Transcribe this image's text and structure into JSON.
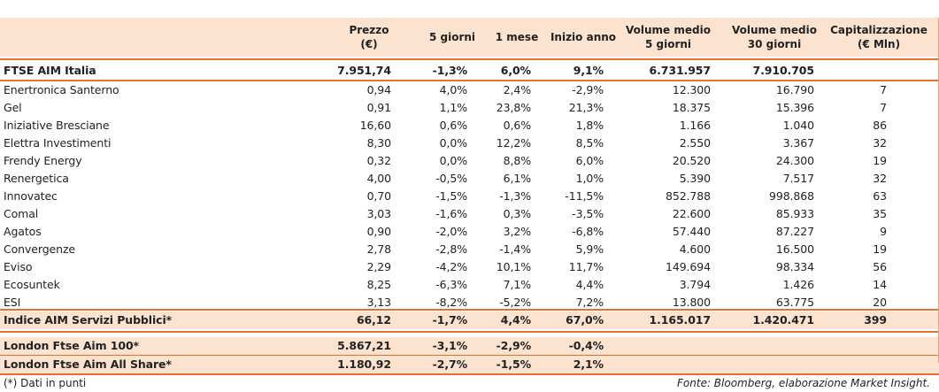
{
  "header": {
    "col1": [
      "Prezzo",
      "(€)"
    ],
    "col2": "5 giorni",
    "col3": "1 mese",
    "col4": "Inizio anno",
    "col5": [
      "Volume medio",
      "5 giorni"
    ],
    "col6": [
      "Volume medio",
      "30 giorni"
    ],
    "col7": [
      "Capitalizzazione",
      "(€ Mln)"
    ]
  },
  "index_row": {
    "name": "FTSE AIM Italia",
    "prezzo": "7.951,74",
    "g5": "-1,3%",
    "m1": "6,0%",
    "ytd": "9,1%",
    "vol5": "6.731.957",
    "vol30": "7.910.705",
    "cap": ""
  },
  "stocks": [
    {
      "name": "Enertronica Santerno",
      "prezzo": "0,94",
      "g5": "4,0%",
      "m1": "2,4%",
      "ytd": "-2,9%",
      "vol5": "12.300",
      "vol30": "16.790",
      "cap": "7"
    },
    {
      "name": "Gel",
      "prezzo": "0,91",
      "g5": "1,1%",
      "m1": "23,8%",
      "ytd": "21,3%",
      "vol5": "18.375",
      "vol30": "15.396",
      "cap": "7"
    },
    {
      "name": "Iniziative Bresciane",
      "prezzo": "16,60",
      "g5": "0,6%",
      "m1": "0,6%",
      "ytd": "1,8%",
      "vol5": "1.166",
      "vol30": "1.040",
      "cap": "86"
    },
    {
      "name": "Elettra Investimenti",
      "prezzo": "8,30",
      "g5": "0,0%",
      "m1": "12,2%",
      "ytd": "8,5%",
      "vol5": "2.550",
      "vol30": "3.367",
      "cap": "32"
    },
    {
      "name": "Frendy Energy",
      "prezzo": "0,32",
      "g5": "0,0%",
      "m1": "8,8%",
      "ytd": "6,0%",
      "vol5": "20.520",
      "vol30": "24.300",
      "cap": "19"
    },
    {
      "name": "Renergetica",
      "prezzo": "4,00",
      "g5": "-0,5%",
      "m1": "6,1%",
      "ytd": "1,0%",
      "vol5": "5.390",
      "vol30": "7.517",
      "cap": "32"
    },
    {
      "name": "Innovatec",
      "prezzo": "0,70",
      "g5": "-1,5%",
      "m1": "-1,3%",
      "ytd": "-11,5%",
      "vol5": "852.788",
      "vol30": "998.868",
      "cap": "63"
    },
    {
      "name": "Comal",
      "prezzo": "3,03",
      "g5": "-1,6%",
      "m1": "0,3%",
      "ytd": "-3,5%",
      "vol5": "22.600",
      "vol30": "85.933",
      "cap": "35"
    },
    {
      "name": "Agatos",
      "prezzo": "0,90",
      "g5": "-2,0%",
      "m1": "3,2%",
      "ytd": "-6,8%",
      "vol5": "57.440",
      "vol30": "87.227",
      "cap": "9"
    },
    {
      "name": "Convergenze",
      "prezzo": "2,78",
      "g5": "-2,8%",
      "m1": "-1,4%",
      "ytd": "5,9%",
      "vol5": "4.600",
      "vol30": "16.500",
      "cap": "19"
    },
    {
      "name": "Eviso",
      "prezzo": "2,29",
      "g5": "-4,2%",
      "m1": "10,1%",
      "ytd": "11,7%",
      "vol5": "149.694",
      "vol30": "98.334",
      "cap": "56"
    },
    {
      "name": "Ecosuntek",
      "prezzo": "8,25",
      "g5": "-6,3%",
      "m1": "7,1%",
      "ytd": "4,4%",
      "vol5": "3.794",
      "vol30": "1.426",
      "cap": "14"
    },
    {
      "name": "ESI",
      "prezzo": "3,13",
      "g5": "-8,2%",
      "m1": "-5,2%",
      "ytd": "7,2%",
      "vol5": "13.800",
      "vol30": "63.775",
      "cap": "20"
    }
  ],
  "sector_row": {
    "name": "Indice AIM Servizi Pubblici*",
    "prezzo": "66,12",
    "g5": "-1,7%",
    "m1": "4,4%",
    "ytd": "67,0%",
    "vol5": "1.165.017",
    "vol30": "1.420.471",
    "cap": "399"
  },
  "london_rows": [
    {
      "name": "London Ftse Aim 100*",
      "prezzo": "5.867,21",
      "g5": "-3,1%",
      "m1": "-2,9%",
      "ytd": "-0,4%"
    },
    {
      "name": "London Ftse Aim All Share*",
      "prezzo": "1.180,92",
      "g5": "-2,7%",
      "m1": "-1,5%",
      "ytd": "2,1%"
    }
  ],
  "footer": {
    "note": "(*) Dati in punti",
    "source": "Fonte: Bloomberg, elaborazione Market Insight."
  },
  "colors": {
    "header_bg": "#fbe3d0",
    "rule": "#e2722f"
  }
}
